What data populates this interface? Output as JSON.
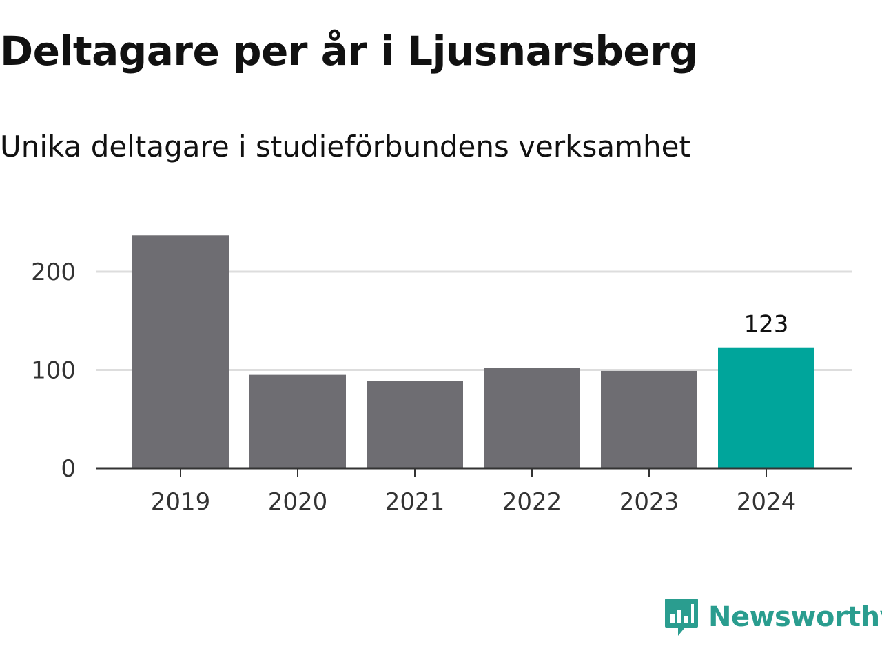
{
  "header": {
    "title": "Deltagare per år i Ljusnarsberg",
    "subtitle": "Unika deltagare i studieförbundens verksamhet"
  },
  "brand": {
    "name": "Newsworthy",
    "icon": "newsworthy-logo-icon",
    "color": "#2a9d8f"
  },
  "colors": {
    "bar": "#6e6d72",
    "highlight": "#00a59b",
    "grid": "#dddddd",
    "axis": "#333333"
  },
  "chart_data": {
    "type": "bar",
    "categories": [
      "2019",
      "2020",
      "2021",
      "2022",
      "2023",
      "2024"
    ],
    "values": [
      237,
      95,
      89,
      102,
      99,
      123
    ],
    "highlight_index": 5,
    "data_labels": [
      {
        "index": 5,
        "text": "123"
      }
    ],
    "yticks": [
      0,
      100,
      200
    ],
    "ylim": [
      0,
      250
    ],
    "grid": true,
    "legend": "none"
  }
}
